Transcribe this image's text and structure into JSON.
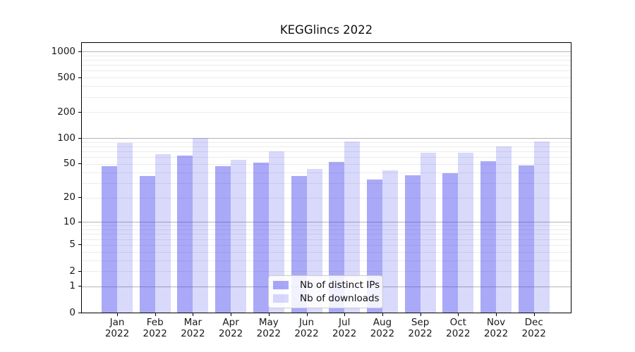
{
  "chart_data": {
    "type": "bar",
    "title": "KEGGlincs 2022",
    "yscale": "log1p",
    "ylim": [
      0,
      1250
    ],
    "yticks": [
      0,
      1,
      2,
      5,
      10,
      20,
      50,
      100,
      200,
      500,
      1000
    ],
    "categories": [
      "Jan 2022",
      "Feb 2022",
      "Mar 2022",
      "Apr 2022",
      "May 2022",
      "Jun 2022",
      "Jul 2022",
      "Aug 2022",
      "Sep 2022",
      "Oct 2022",
      "Nov 2022",
      "Dec 2022"
    ],
    "series": [
      {
        "name": "Nb of distinct IPs",
        "color": "rgba(64,64,240,0.45)",
        "values": [
          47,
          36,
          63,
          47,
          52,
          36,
          53,
          33,
          37,
          39,
          54,
          48
        ]
      },
      {
        "name": "Nb of downloads",
        "color": "rgba(64,64,240,0.20)",
        "values": [
          88,
          65,
          100,
          56,
          70,
          44,
          91,
          42,
          67,
          67,
          80,
          91
        ]
      }
    ],
    "grid": "horizontal",
    "legend_position": "lower-center",
    "colors": {
      "major_gridline": "#b4b4b4",
      "minor_gridline": "#ececec",
      "axis": "#000000",
      "text": "#191919",
      "legend_border": "#cccccc",
      "legend_background": "rgba(255,255,255,0.85)"
    }
  }
}
